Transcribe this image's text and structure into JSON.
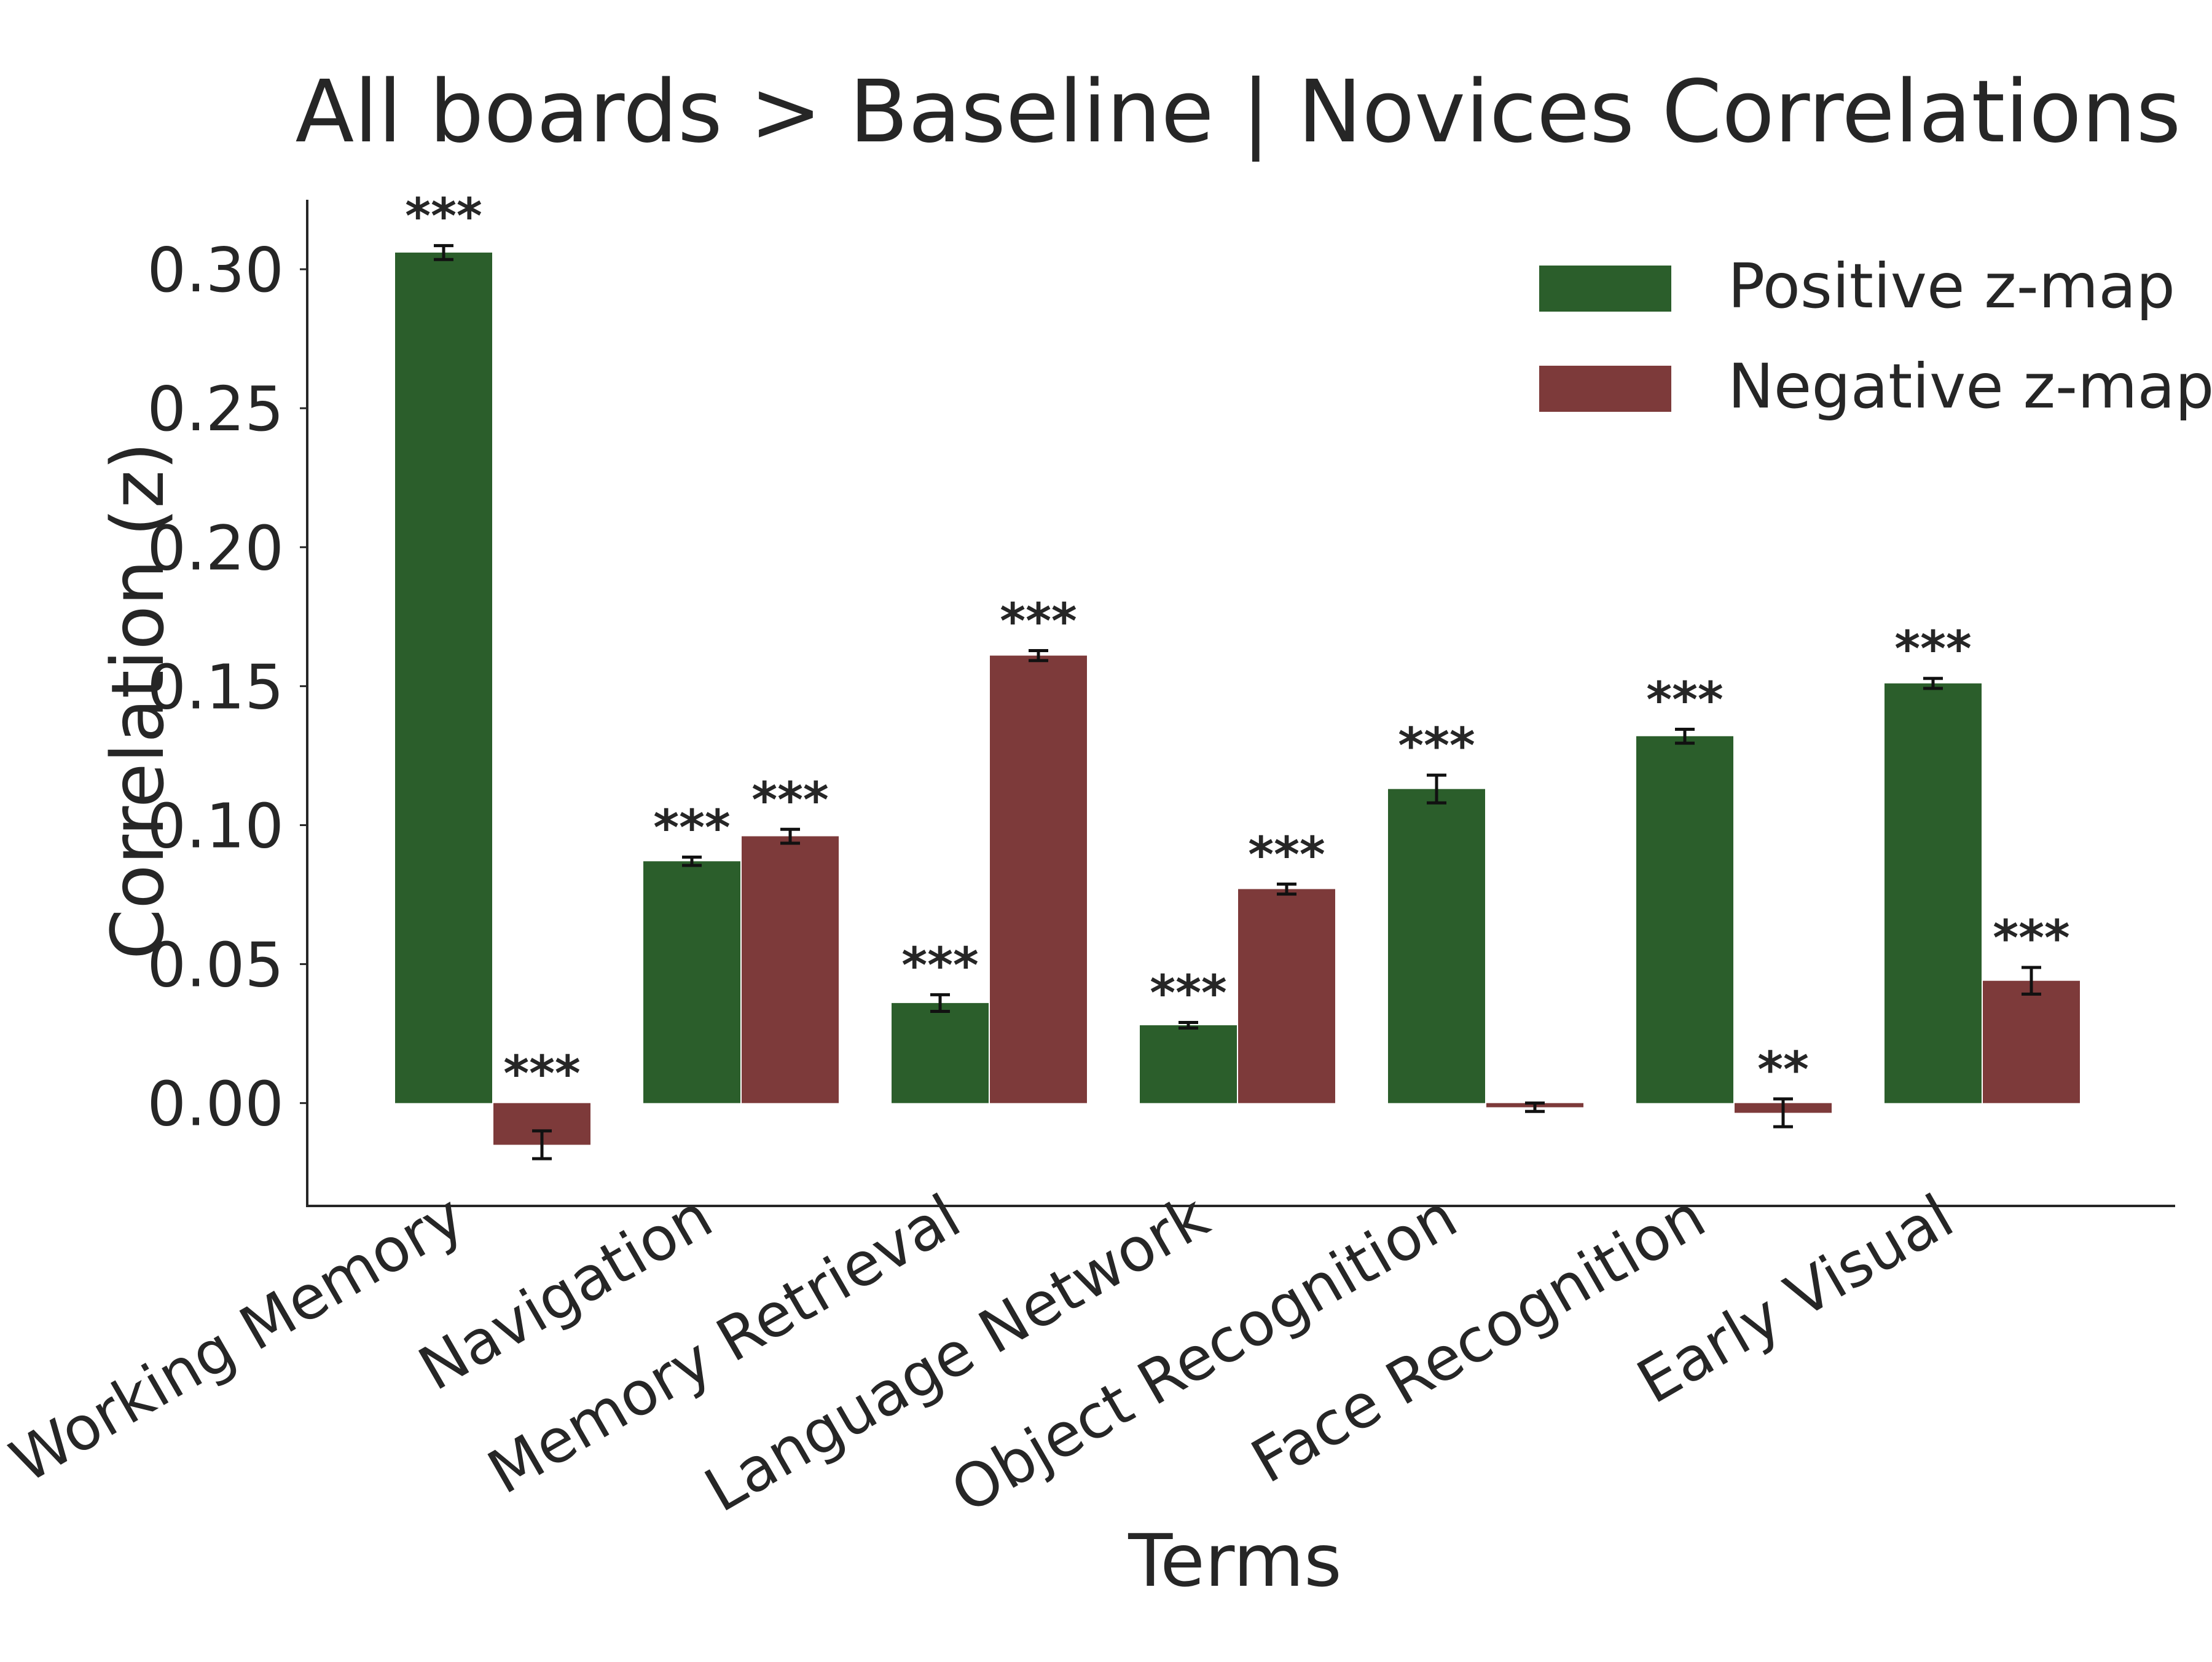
{
  "chart_data": {
    "type": "bar",
    "title": "All boards > Baseline | Novices Correlations",
    "xlabel": "Terms",
    "ylabel": "Correlation (z)",
    "ylim": [
      -0.037,
      0.325
    ],
    "yticks": [
      0.0,
      0.05,
      0.1,
      0.15,
      0.2,
      0.25,
      0.3
    ],
    "ytick_labels": [
      "0.00",
      "0.05",
      "0.10",
      "0.15",
      "0.20",
      "0.25",
      "0.30"
    ],
    "grid": false,
    "legend_position": "top-right",
    "categories": [
      "Working Memory",
      "Navigation",
      "Memory Retrieval",
      "Language Network",
      "Object Recognition",
      "Face Recognition",
      "Early Visual"
    ],
    "series": [
      {
        "name": "Positive z-map",
        "color": "#2b5e2b",
        "values": [
          0.306,
          0.087,
          0.036,
          0.028,
          0.113,
          0.132,
          0.151
        ],
        "errors": [
          0.0025,
          0.0015,
          0.003,
          0.001,
          0.005,
          0.0025,
          0.0018
        ],
        "significance": [
          "***",
          "***",
          "***",
          "***",
          "***",
          "***",
          "***"
        ]
      },
      {
        "name": "Negative z-map",
        "color": "#7d3a3a",
        "values": [
          -0.015,
          0.096,
          0.161,
          0.077,
          -0.0015,
          -0.0035,
          0.044
        ],
        "errors": [
          0.005,
          0.0025,
          0.0018,
          0.0018,
          0.0015,
          0.005,
          0.0048
        ],
        "significance": [
          "***",
          "***",
          "***",
          "***",
          "",
          "**",
          "***"
        ]
      }
    ]
  }
}
